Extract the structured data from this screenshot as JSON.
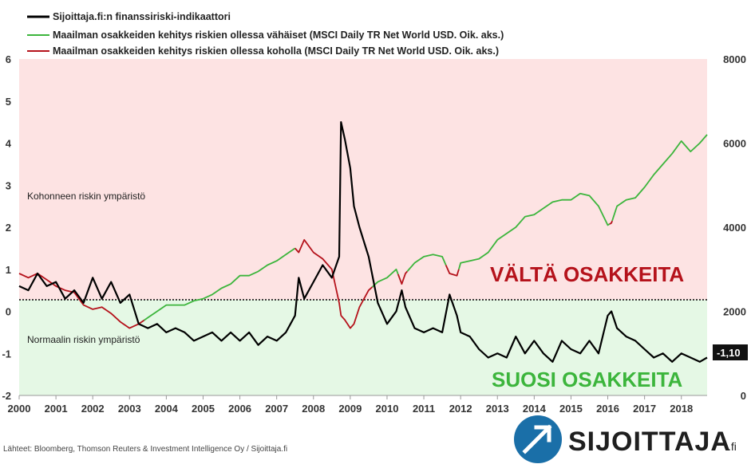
{
  "chart_data": {
    "type": "line",
    "x_ticks": [
      "2000",
      "2001",
      "2002",
      "2003",
      "2004",
      "2005",
      "2006",
      "2007",
      "2008",
      "2009",
      "2010",
      "2011",
      "2012",
      "2013",
      "2014",
      "2015",
      "2016",
      "2017",
      "2018"
    ],
    "xlim": [
      2000,
      2018.7
    ],
    "y_left_ticks": [
      "-2",
      "-1",
      "0",
      "1",
      "2",
      "3",
      "4",
      "5",
      "6"
    ],
    "y_left_lim": [
      -2,
      6
    ],
    "y_right_ticks": [
      "0",
      "2000",
      "4000",
      "6000",
      "8000"
    ],
    "y_right_lim": [
      0,
      8000
    ],
    "legend": [
      {
        "label": "Sijoittaja.fi:n finanssiriski-indikaattori",
        "color": "#000000"
      },
      {
        "label": "Maailman osakkeiden kehitys riskien ollessa vähäiset (MSCI Daily TR Net World USD. Oik. aks.)",
        "color": "#3cb53c"
      },
      {
        "label": "Maailman osakkeiden kehitys riskien ollessa koholla (MSCI Daily TR Net World USD. Oik. aks.)",
        "color": "#b5121b"
      }
    ],
    "zones": {
      "high_label": "Kohonneen riskin ympäristö",
      "normal_label": "Normaalin riskin ympäristö",
      "high_color": "#fde3e3",
      "normal_color": "#e5f8e5"
    },
    "annotations": {
      "avoid": "VÄLTÄ OSAKKEITA",
      "favor": "SUOSI OSAKKEITA",
      "last_value": "-1,10"
    },
    "series": [
      {
        "name": "Sijoittaja.fi:n finanssiriski-indikaattori",
        "axis": "left",
        "color": "#000000",
        "x": [
          2000.0,
          2000.25,
          2000.5,
          2000.75,
          2001.0,
          2001.25,
          2001.5,
          2001.75,
          2002.0,
          2002.25,
          2002.5,
          2002.75,
          2003.0,
          2003.25,
          2003.5,
          2003.75,
          2004.0,
          2004.25,
          2004.5,
          2004.75,
          2005.0,
          2005.25,
          2005.5,
          2005.75,
          2006.0,
          2006.25,
          2006.5,
          2006.75,
          2007.0,
          2007.25,
          2007.5,
          2007.6,
          2007.75,
          2008.0,
          2008.25,
          2008.5,
          2008.7,
          2008.75,
          2008.85,
          2009.0,
          2009.1,
          2009.25,
          2009.5,
          2009.75,
          2010.0,
          2010.25,
          2010.4,
          2010.5,
          2010.75,
          2011.0,
          2011.25,
          2011.5,
          2011.7,
          2011.9,
          2012.0,
          2012.25,
          2012.5,
          2012.75,
          2013.0,
          2013.25,
          2013.5,
          2013.75,
          2014.0,
          2014.25,
          2014.5,
          2014.75,
          2015.0,
          2015.25,
          2015.5,
          2015.75,
          2016.0,
          2016.1,
          2016.25,
          2016.5,
          2016.75,
          2017.0,
          2017.25,
          2017.5,
          2017.75,
          2018.0,
          2018.25,
          2018.5,
          2018.7
        ],
        "y": [
          0.6,
          0.5,
          0.9,
          0.6,
          0.7,
          0.3,
          0.5,
          0.2,
          0.8,
          0.3,
          0.7,
          0.2,
          0.4,
          -0.3,
          -0.4,
          -0.3,
          -0.5,
          -0.4,
          -0.5,
          -0.7,
          -0.6,
          -0.5,
          -0.7,
          -0.5,
          -0.7,
          -0.5,
          -0.8,
          -0.6,
          -0.7,
          -0.5,
          -0.1,
          0.8,
          0.3,
          0.7,
          1.1,
          0.8,
          1.3,
          4.5,
          4.1,
          3.4,
          2.5,
          2.0,
          1.3,
          0.2,
          -0.3,
          0.0,
          0.5,
          0.1,
          -0.4,
          -0.5,
          -0.4,
          -0.5,
          0.4,
          -0.1,
          -0.5,
          -0.6,
          -0.9,
          -1.1,
          -1.0,
          -1.1,
          -0.6,
          -1.0,
          -0.7,
          -1.0,
          -1.2,
          -0.7,
          -0.9,
          -1.0,
          -0.7,
          -1.0,
          -0.1,
          0.0,
          -0.4,
          -0.6,
          -0.7,
          -0.9,
          -1.1,
          -1.0,
          -1.2,
          -1.0,
          -1.1,
          -1.2,
          -1.1
        ]
      },
      {
        "name": "Maailman osakkeiden kehitys (MSCI Daily TR Net World USD)",
        "axis": "right",
        "x": [
          2000.0,
          2000.25,
          2000.5,
          2000.75,
          2001.0,
          2001.25,
          2001.5,
          2001.75,
          2002.0,
          2002.25,
          2002.5,
          2002.75,
          2003.0,
          2003.25,
          2003.5,
          2003.75,
          2004.0,
          2004.25,
          2004.5,
          2004.75,
          2005.0,
          2005.25,
          2005.5,
          2005.75,
          2006.0,
          2006.25,
          2006.5,
          2006.75,
          2007.0,
          2007.25,
          2007.5,
          2007.6,
          2007.75,
          2008.0,
          2008.25,
          2008.5,
          2008.7,
          2008.75,
          2008.85,
          2009.0,
          2009.1,
          2009.25,
          2009.5,
          2009.75,
          2010.0,
          2010.25,
          2010.4,
          2010.5,
          2010.75,
          2011.0,
          2011.25,
          2011.5,
          2011.7,
          2011.9,
          2012.0,
          2012.25,
          2012.5,
          2012.75,
          2013.0,
          2013.25,
          2013.5,
          2013.75,
          2014.0,
          2014.25,
          2014.5,
          2014.75,
          2015.0,
          2015.25,
          2015.5,
          2015.75,
          2016.0,
          2016.1,
          2016.25,
          2016.5,
          2016.75,
          2017.0,
          2017.25,
          2017.5,
          2017.75,
          2018.0,
          2018.25,
          2018.5,
          2018.7
        ],
        "y": [
          2900,
          2800,
          2900,
          2750,
          2600,
          2500,
          2450,
          2150,
          2050,
          2100,
          1950,
          1750,
          1600,
          1700,
          1850,
          2000,
          2150,
          2150,
          2150,
          2250,
          2300,
          2400,
          2550,
          2650,
          2850,
          2850,
          2950,
          3100,
          3200,
          3350,
          3500,
          3400,
          3700,
          3400,
          3250,
          3000,
          2200,
          1900,
          1800,
          1600,
          1700,
          2100,
          2500,
          2700,
          2800,
          3000,
          2650,
          2900,
          3150,
          3300,
          3350,
          3300,
          2900,
          2850,
          3150,
          3200,
          3250,
          3400,
          3700,
          3850,
          4000,
          4250,
          4300,
          4450,
          4600,
          4650,
          4650,
          4800,
          4750,
          4500,
          4050,
          4100,
          4500,
          4650,
          4700,
          4950,
          5250,
          5500,
          5750,
          6050,
          5800,
          6000,
          6200
        ],
        "segments": [
          {
            "from": 2000.0,
            "to": 2003.4,
            "color": "#b5121b"
          },
          {
            "from": 2003.4,
            "to": 2007.5,
            "color": "#3cb53c"
          },
          {
            "from": 2007.5,
            "to": 2009.6,
            "color": "#b5121b"
          },
          {
            "from": 2009.6,
            "to": 2010.3,
            "color": "#3cb53c"
          },
          {
            "from": 2010.3,
            "to": 2010.55,
            "color": "#b5121b"
          },
          {
            "from": 2010.55,
            "to": 2011.6,
            "color": "#3cb53c"
          },
          {
            "from": 2011.6,
            "to": 2011.95,
            "color": "#b5121b"
          },
          {
            "from": 2011.95,
            "to": 2016.05,
            "color": "#3cb53c"
          },
          {
            "from": 2016.05,
            "to": 2016.12,
            "color": "#b5121b"
          },
          {
            "from": 2016.12,
            "to": 2018.7,
            "color": "#3cb53c"
          }
        ]
      }
    ],
    "grid": false
  },
  "footer": {
    "source": "Lähteet: Bloomberg, Thomson Reuters & Investment Intelligence Oy / Sijoittaja.fi",
    "brand_name": "SIJOITTAJA",
    "brand_suffix": ".fi"
  }
}
